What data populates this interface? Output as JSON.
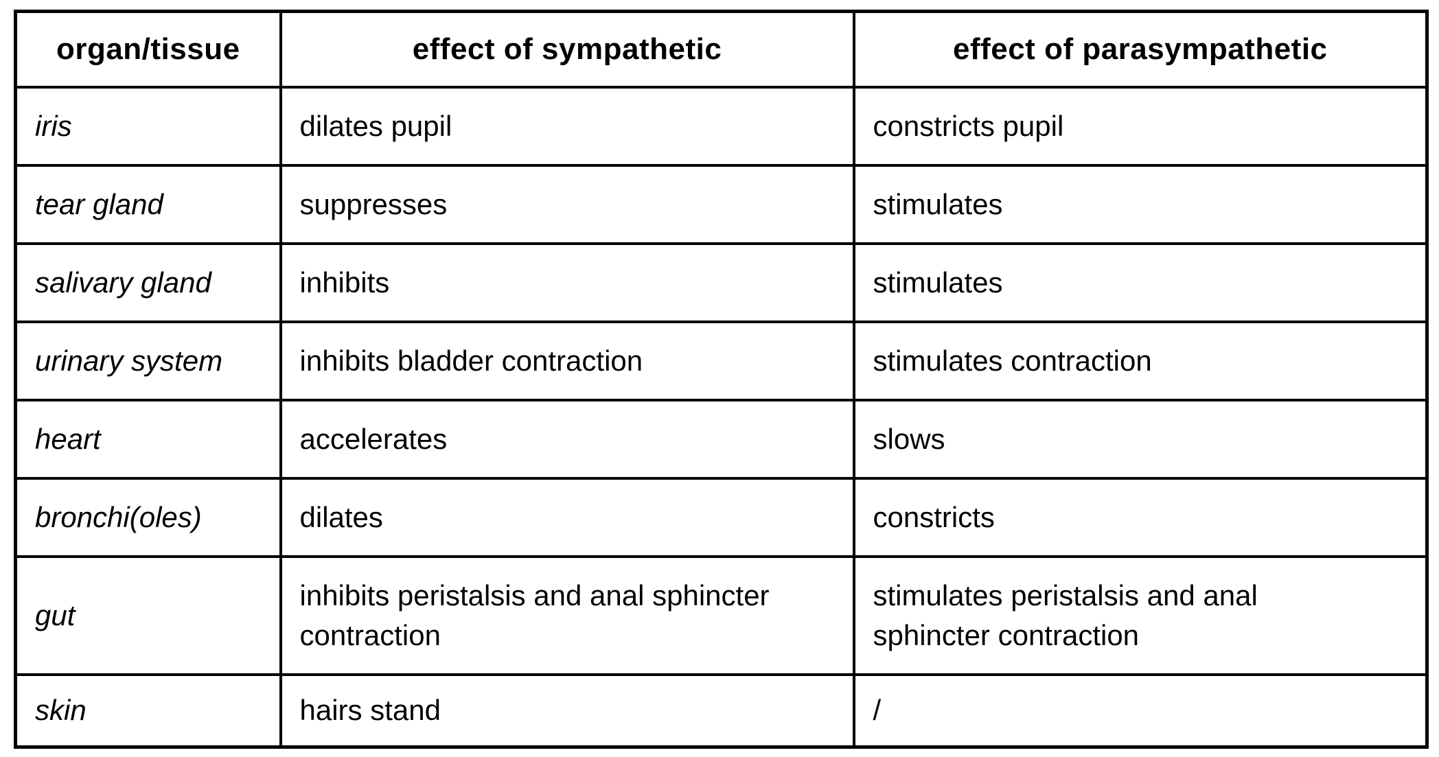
{
  "table": {
    "title": "autonomic nervous system effects table",
    "border_color": "#000000",
    "background_color": "#ffffff",
    "text_color": "#000000",
    "columns": [
      {
        "label": "organ/tissue"
      },
      {
        "label": "effect of sympathetic"
      },
      {
        "label": "effect of parasympathetic"
      }
    ],
    "rows": [
      {
        "cells": [
          "iris",
          "dilates pupil",
          "constricts pupil"
        ]
      },
      {
        "cells": [
          "tear gland",
          "suppresses",
          "stimulates"
        ]
      },
      {
        "cells": [
          "salivary gland",
          "inhibits",
          "stimulates"
        ]
      },
      {
        "cells": [
          "urinary system",
          "inhibits bladder contraction",
          "stimulates contraction"
        ]
      },
      {
        "cells": [
          "heart",
          "accelerates",
          "slows"
        ]
      },
      {
        "cells": [
          "bronchi(oles)",
          "dilates",
          "constricts"
        ]
      },
      {
        "cells": [
          "gut",
          "inhibits peristalsis and anal sphincter contraction",
          "stimulates peristalsis and anal sphincter contraction"
        ]
      },
      {
        "cells": [
          "skin",
          "hairs stand",
          "/"
        ]
      }
    ]
  }
}
